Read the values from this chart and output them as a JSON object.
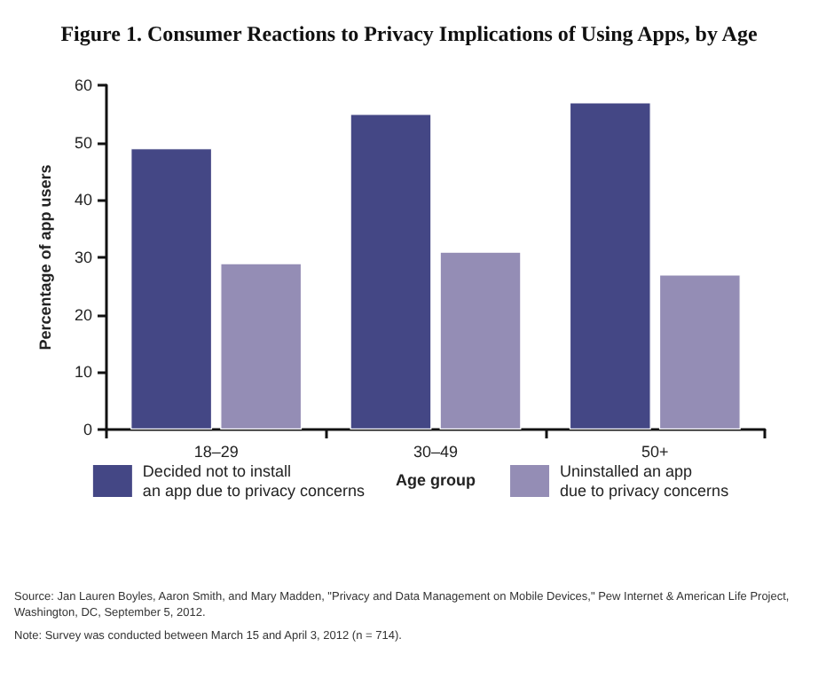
{
  "chart_data": {
    "type": "bar",
    "title": "Figure 1. Consumer Reactions to Privacy Implications of Using Apps, by Age",
    "xlabel": "Age group",
    "ylabel": "Percentage of app users",
    "categories": [
      "18–29",
      "30–49",
      "50+"
    ],
    "series": [
      {
        "name": "Decided not to install\nan app due to privacy concerns",
        "color": "#444785",
        "values": [
          49,
          55,
          57
        ]
      },
      {
        "name": "Uninstalled an app\ndue to privacy concerns",
        "color": "#948db5",
        "values": [
          29,
          31,
          27
        ]
      }
    ],
    "ylim": [
      0,
      60
    ],
    "yticks": [
      0,
      10,
      20,
      30,
      40,
      50,
      60
    ],
    "grid": false,
    "legend": "bottom",
    "annotations": [
      "Source: Jan Lauren Boyles, Aaron Smith, and Mary Madden, \"Privacy and Data Management on Mobile Devices,\" Pew Internet & American Life Project, Washington, DC, September 5, 2012.",
      "Note: Survey was conducted between March 15 and April 3, 2012 (n = 714)."
    ]
  }
}
